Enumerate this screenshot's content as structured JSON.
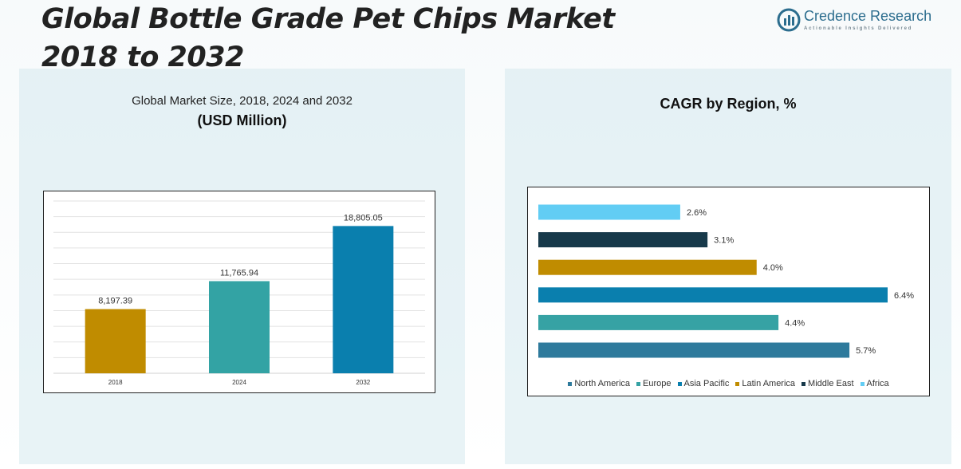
{
  "header": {
    "title_line1": "Global Bottle Grade Pet Chips Market",
    "title_line2": "2018 to 2032"
  },
  "logo": {
    "icon": "bar-chart-circle-icon",
    "name": "Credence Research",
    "tagline": "Actionable Insights Delivered"
  },
  "chart_data": [
    {
      "type": "bar",
      "title": "Global Market Size, 2018, 2024 and 2032",
      "subtitle": "(USD Million)",
      "categories": [
        "2018",
        "2024",
        "2032"
      ],
      "values": [
        8197.39,
        11765.94,
        18805.05
      ],
      "value_labels": [
        "8,197.39",
        "11,765.94",
        "18,805.05"
      ],
      "colors": [
        "#c08c00",
        "#33a3a4",
        "#0a7fae"
      ],
      "ylim": [
        0,
        22000
      ],
      "grid": true
    },
    {
      "type": "bar",
      "orientation": "horizontal",
      "title": "CAGR by Region, %",
      "series": [
        {
          "name": "North America",
          "value": 5.7,
          "label": "5.7%",
          "color": "#2e7a9c"
        },
        {
          "name": "Europe",
          "value": 4.4,
          "label": "4.4%",
          "color": "#36a2a4"
        },
        {
          "name": "Asia Pacific",
          "value": 6.4,
          "label": "6.4%",
          "color": "#0a7fae"
        },
        {
          "name": "Latin America",
          "value": 4.0,
          "label": "4.0%",
          "color": "#c08c00"
        },
        {
          "name": "Middle East",
          "value": 3.1,
          "label": "3.1%",
          "color": "#17394a"
        },
        {
          "name": "Africa",
          "value": 2.6,
          "label": "2.6%",
          "color": "#62cdf4"
        }
      ],
      "xlim": [
        0,
        6.4
      ],
      "legend": "bottom",
      "grid": false
    }
  ]
}
